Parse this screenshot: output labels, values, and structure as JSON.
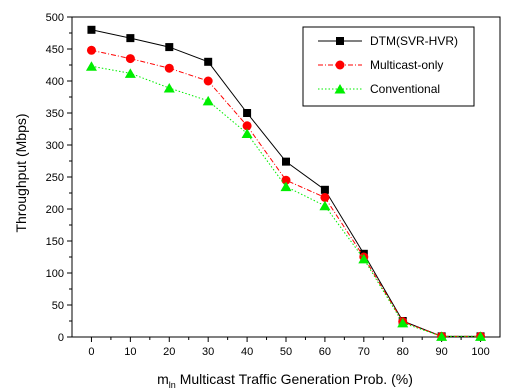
{
  "chart_data": {
    "type": "line",
    "xlabel": "m_ln Multicast Traffic Generation Prob. (%)",
    "xlabel_parts": {
      "main": "m",
      "sub": "ln",
      "rest": " Multicast Traffic Generation Prob. (%)"
    },
    "ylabel": "Throughput (Mbps)",
    "x": [
      0,
      10,
      20,
      30,
      40,
      50,
      60,
      70,
      80,
      90,
      100
    ],
    "xlim": [
      -5,
      105
    ],
    "ylim": [
      0,
      500
    ],
    "xticks": [
      0,
      10,
      20,
      30,
      40,
      50,
      60,
      70,
      80,
      90,
      100
    ],
    "yticks": [
      0,
      50,
      100,
      150,
      200,
      250,
      300,
      350,
      400,
      450,
      500
    ],
    "grid": false,
    "legend_position": "top-right",
    "series": [
      {
        "name": "DTM(SVR-HVR)",
        "marker": "square",
        "color": "#000000",
        "line_style": "solid",
        "values": [
          480,
          467,
          453,
          430,
          350,
          274,
          230,
          130,
          25,
          1,
          1
        ]
      },
      {
        "name": "Multicast-only",
        "marker": "circle",
        "color": "#ff0000",
        "line_style": "dashdot",
        "values": [
          448,
          435,
          420,
          400,
          330,
          245,
          218,
          125,
          24,
          1,
          1
        ]
      },
      {
        "name": "Conventional",
        "marker": "triangle",
        "color": "#00ee00",
        "line_style": "dotted",
        "values": [
          423,
          412,
          389,
          369,
          318,
          235,
          205,
          122,
          22,
          1,
          1
        ]
      }
    ]
  }
}
